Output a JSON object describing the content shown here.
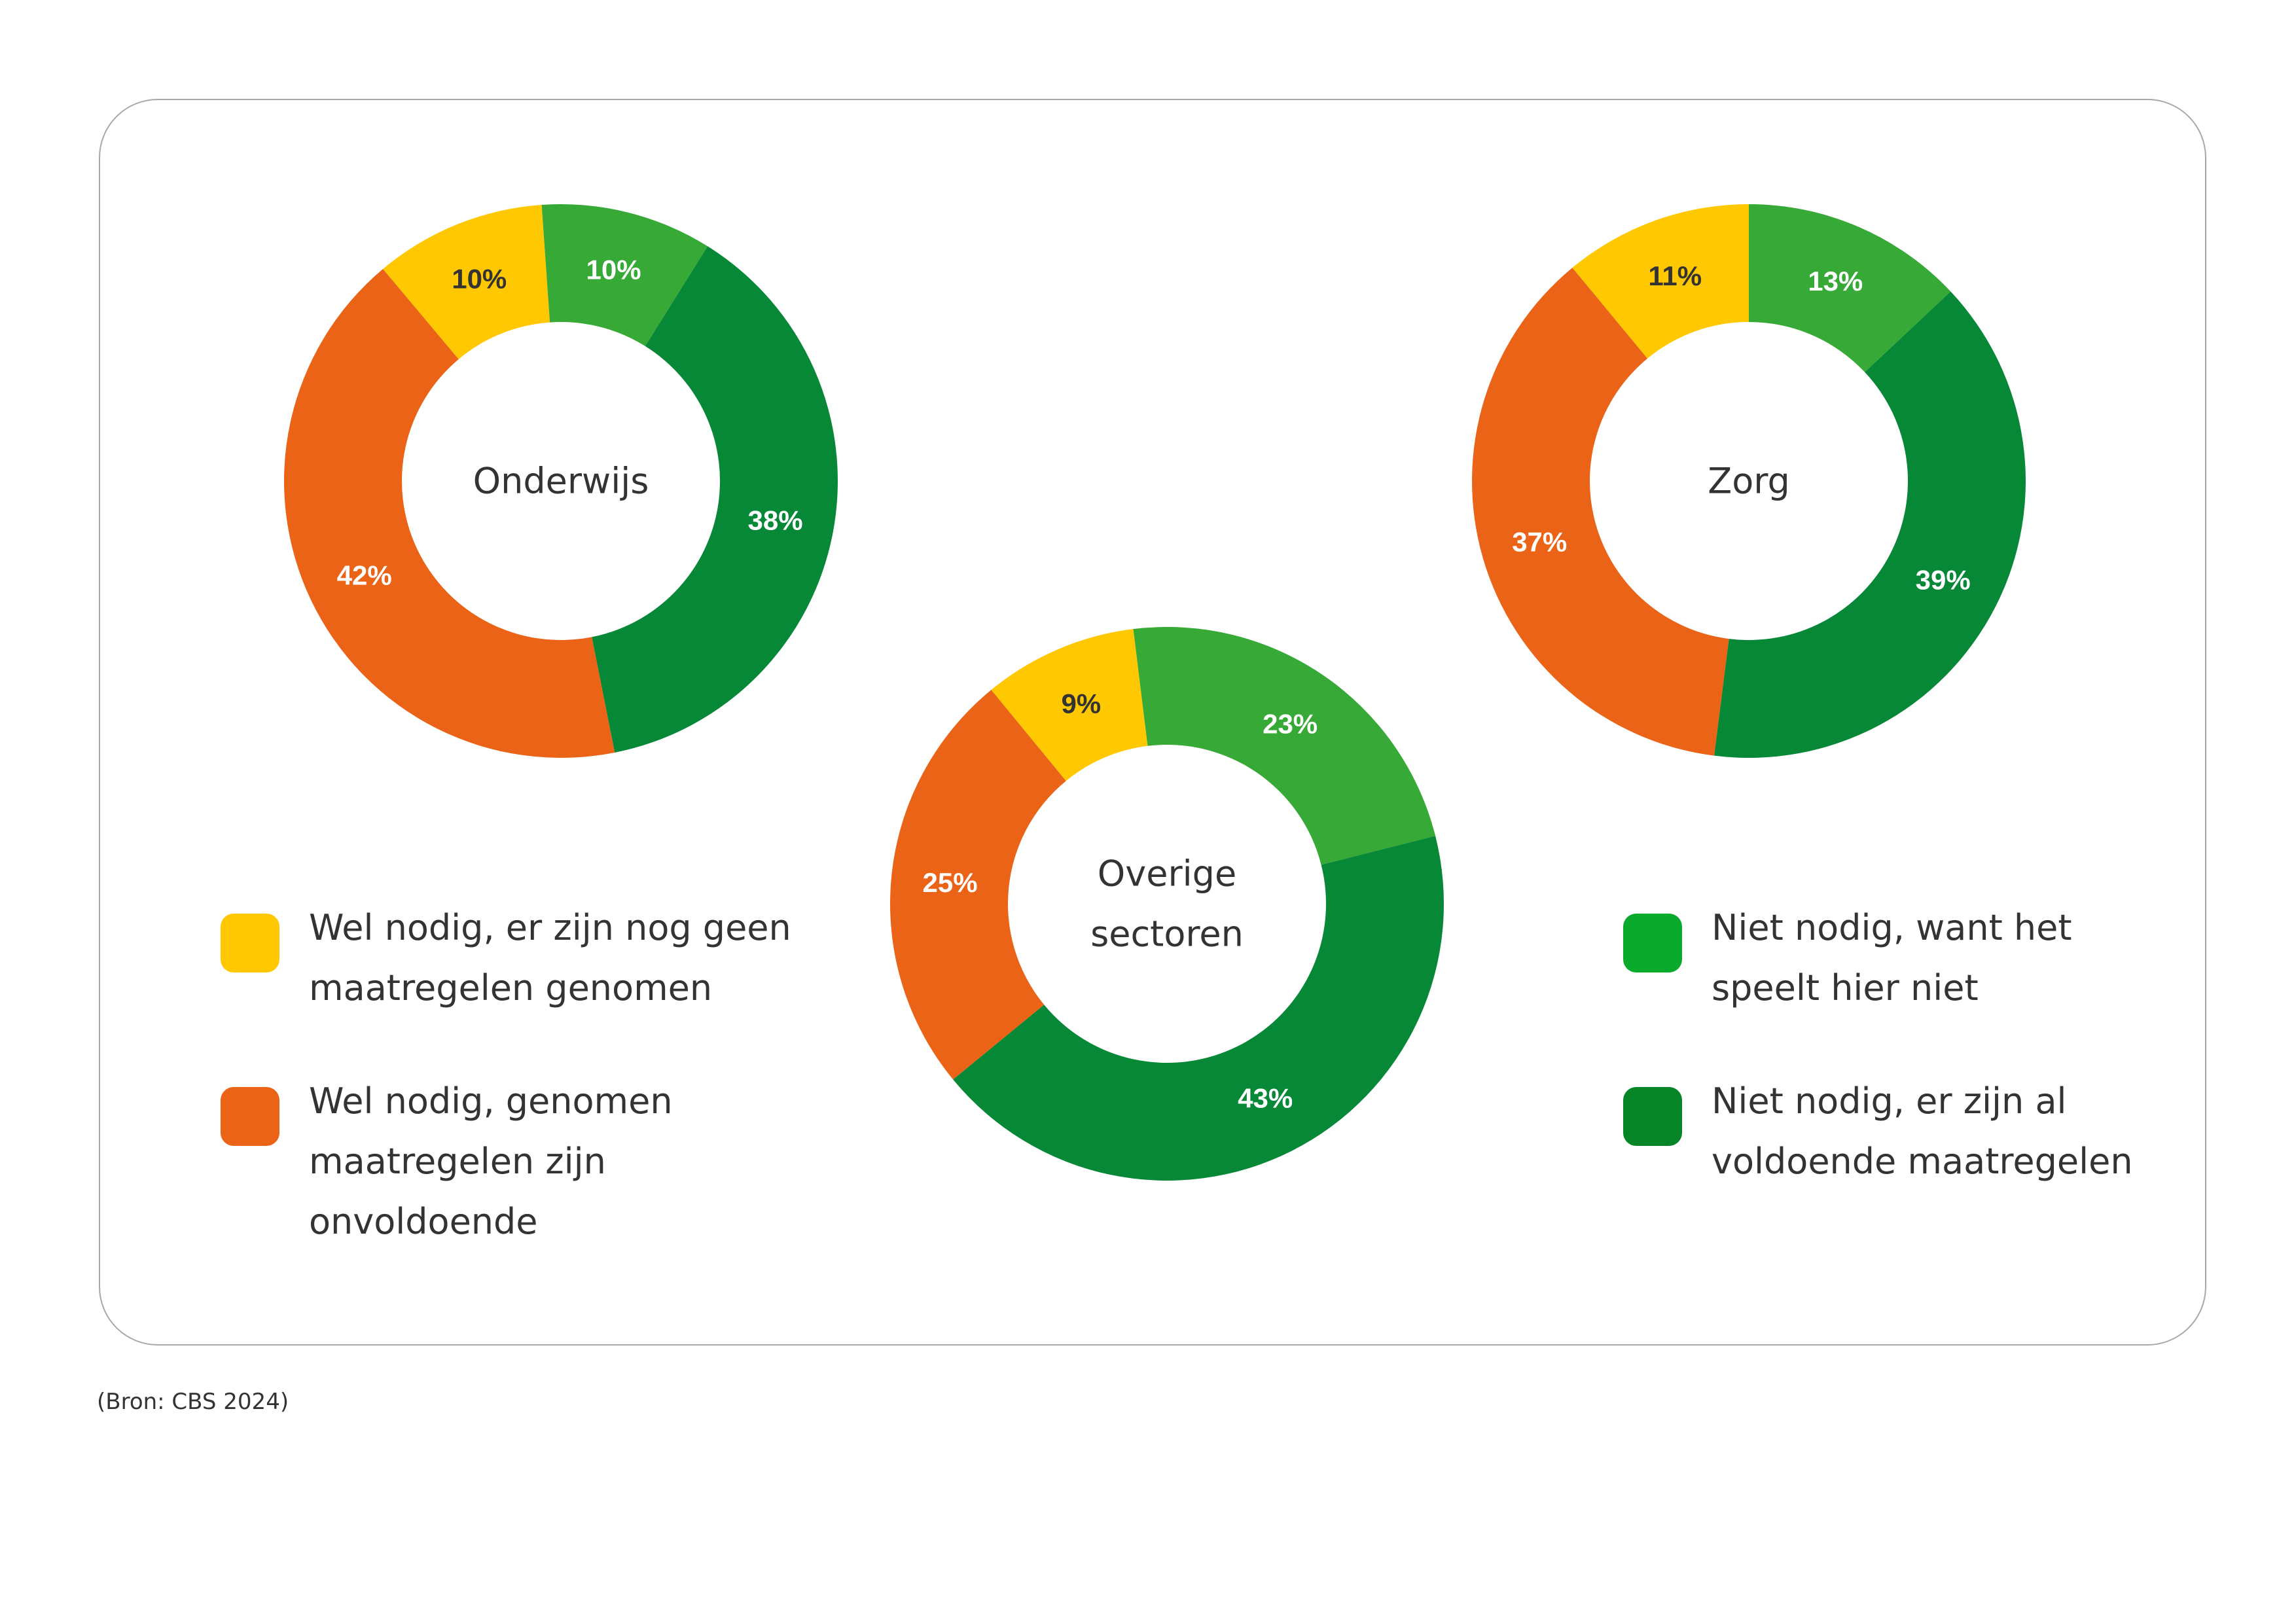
{
  "chart_data": {
    "type": "pie",
    "variant": "donut",
    "categories": [
      "Niet nodig, want het speelt hier niet",
      "Niet nodig, er zijn al voldoende maatregelen",
      "Wel nodig, genomen maatregelen zijn onvoldoende",
      "Wel nodig, er zijn nog geen maatregelen genomen"
    ],
    "colors": [
      "#36A936",
      "#078837",
      "#EA6317",
      "#FFC800"
    ],
    "legend_colors": [
      "#0AAA2C",
      "#058526",
      "#EA6317",
      "#FFC800"
    ],
    "charts": [
      {
        "title": "Onderwijs",
        "values": [
          10,
          38,
          42,
          10
        ],
        "labels": [
          "10%",
          "38%",
          "42%",
          "10%"
        ]
      },
      {
        "title": "Zorg",
        "values": [
          13,
          39,
          37,
          11
        ],
        "labels": [
          "13%",
          "39%",
          "37%",
          "11%"
        ]
      },
      {
        "title": "Overige sectoren",
        "title_lines": [
          "Overige",
          "sectoren"
        ],
        "values": [
          23,
          43,
          25,
          9
        ],
        "labels": [
          "23%",
          "43%",
          "25%",
          "9%"
        ]
      }
    ],
    "legend_placement": "bottom-left and bottom-right"
  },
  "legend": {
    "left": [
      {
        "lines": [
          "Wel nodig, er zijn nog geen",
          "maatregelen genomen"
        ]
      },
      {
        "lines": [
          "Wel nodig, genomen",
          "maatregelen zijn",
          "onvoldoende"
        ]
      }
    ],
    "right": [
      {
        "lines": [
          "Niet nodig, want het",
          "speelt hier niet"
        ]
      },
      {
        "lines": [
          "Niet nodig, er zijn al",
          "voldoende maatregelen"
        ]
      }
    ]
  },
  "source": "(Bron: CBS 2024)"
}
